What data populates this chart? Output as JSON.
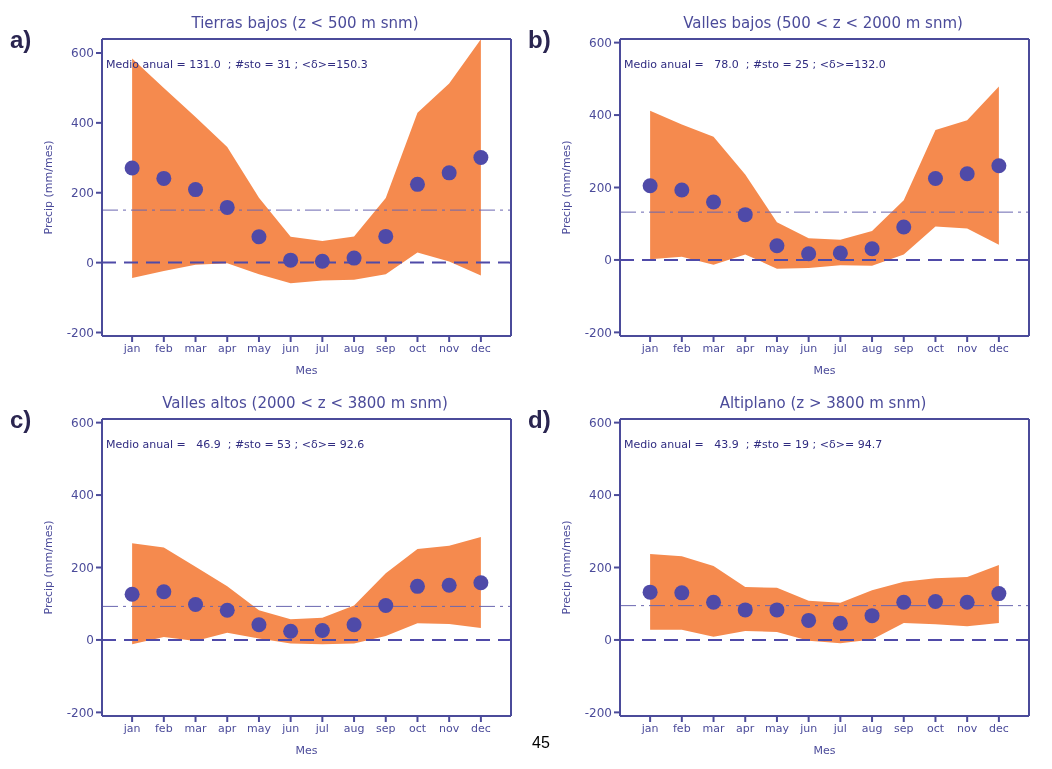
{
  "chart_data": [
    {
      "type": "scatter",
      "title": "Tierras bajos (z < 500 m snm)",
      "xlabel": "Mes",
      "ylabel": "Precip (mm/mes)",
      "categories": [
        "jan",
        "feb",
        "mar",
        "apr",
        "may",
        "jun",
        "jul",
        "aug",
        "sep",
        "oct",
        "nov",
        "dec"
      ],
      "ylim": [
        -210,
        640
      ],
      "yticks": [
        -200,
        0,
        200,
        400,
        600
      ],
      "series": [
        {
          "color": "#4f4aa8",
          "values": [
            271,
            241,
            209,
            158,
            74,
            7,
            4,
            13,
            75,
            224,
            257,
            301
          ],
          "lower": [
            -44,
            -24,
            -6,
            -2,
            -33,
            -59,
            -51,
            -49,
            -33,
            29,
            3,
            -37
          ],
          "upper": [
            584,
            500,
            417,
            331,
            186,
            74,
            62,
            75,
            185,
            429,
            513,
            639
          ]
        }
      ],
      "ref_lines": [
        {
          "axis": "y",
          "value": 0,
          "line_style": "dashed",
          "color": "#4f4aa8"
        },
        {
          "axis": "y",
          "value": 150.3,
          "line_style": "dotted",
          "color": "#6a66b0"
        }
      ],
      "annotations": [
        "a)",
        "Medio anual = 131.0  ; #sto = 31 ; <δ>=150.3"
      ]
    },
    {
      "type": "scatter",
      "title": "Valles bajos (500 < z < 2000 m snm)",
      "xlabel": "Mes",
      "ylabel": "Precip (mm/mes)",
      "categories": [
        "jan",
        "feb",
        "mar",
        "apr",
        "may",
        "jun",
        "jul",
        "aug",
        "sep",
        "oct",
        "nov",
        "dec"
      ],
      "ylim": [
        -210,
        610
      ],
      "yticks": [
        -200,
        0,
        200,
        400,
        600
      ],
      "series": [
        {
          "color": "#4f4aa8",
          "values": [
            205,
            193,
            160,
            125,
            39,
            17,
            19,
            31,
            91,
            225,
            238,
            260
          ],
          "lower": [
            2,
            9,
            -13,
            15,
            -24,
            -22,
            -15,
            -16,
            15,
            92,
            87,
            42
          ],
          "upper": [
            412,
            374,
            340,
            236,
            104,
            60,
            56,
            80,
            165,
            359,
            386,
            479
          ]
        }
      ],
      "ref_lines": [
        {
          "axis": "y",
          "value": 0,
          "line_style": "dashed",
          "color": "#4f4aa8"
        },
        {
          "axis": "y",
          "value": 132.0,
          "line_style": "dotted",
          "color": "#6a66b0"
        }
      ],
      "annotations": [
        "b)",
        "Medio anual =   78.0  ; #sto = 25 ; <δ>=132.0"
      ]
    },
    {
      "type": "scatter",
      "title": "Valles altos (2000 < z < 3800 m snm)",
      "xlabel": "Mes",
      "ylabel": "Precip (mm/mes)",
      "categories": [
        "jan",
        "feb",
        "mar",
        "apr",
        "may",
        "jun",
        "jul",
        "aug",
        "sep",
        "oct",
        "nov",
        "dec"
      ],
      "ylim": [
        -210,
        610
      ],
      "yticks": [
        -200,
        0,
        200,
        400,
        600
      ],
      "series": [
        {
          "color": "#4f4aa8",
          "values": [
            126,
            133,
            98,
            82,
            42,
            24,
            26,
            42,
            95,
            148,
            151,
            158
          ],
          "lower": [
            -12,
            8,
            -3,
            20,
            4,
            -10,
            -12,
            -10,
            11,
            46,
            44,
            33
          ],
          "upper": [
            267,
            255,
            202,
            148,
            82,
            57,
            61,
            95,
            184,
            251,
            260,
            284
          ]
        }
      ],
      "ref_lines": [
        {
          "axis": "y",
          "value": 0,
          "line_style": "dashed",
          "color": "#4f4aa8"
        },
        {
          "axis": "y",
          "value": 92.6,
          "line_style": "dotted",
          "color": "#6a66b0"
        }
      ],
      "annotations": [
        "c)",
        "Medio anual =   46.9  ; #sto = 53 ; <δ>= 92.6"
      ]
    },
    {
      "type": "scatter",
      "title": "Altiplano (z > 3800 m snm)",
      "xlabel": "Mes",
      "ylabel": "Precip (mm/mes)",
      "categories": [
        "jan",
        "feb",
        "mar",
        "apr",
        "may",
        "jun",
        "jul",
        "aug",
        "sep",
        "oct",
        "nov",
        "dec"
      ],
      "ylim": [
        -210,
        610
      ],
      "yticks": [
        -200,
        0,
        200,
        400,
        600
      ],
      "series": [
        {
          "color": "#4f4aa8",
          "values": [
            132,
            130,
            104,
            83,
            83,
            54,
            46,
            67,
            104,
            106,
            104,
            128
          ],
          "lower": [
            28,
            28,
            9,
            25,
            22,
            -2,
            -9,
            1,
            47,
            43,
            38,
            47
          ],
          "upper": [
            237,
            231,
            204,
            146,
            144,
            108,
            103,
            137,
            161,
            170,
            174,
            207
          ]
        }
      ],
      "ref_lines": [
        {
          "axis": "y",
          "value": 0,
          "line_style": "dashed",
          "color": "#4f4aa8"
        },
        {
          "axis": "y",
          "value": 94.7,
          "line_style": "dotted",
          "color": "#6a66b0"
        }
      ],
      "annotations": [
        "d)",
        "Medio anual =   43.9  ; #sto = 19 ; <δ>= 94.7",
        "45"
      ]
    }
  ]
}
